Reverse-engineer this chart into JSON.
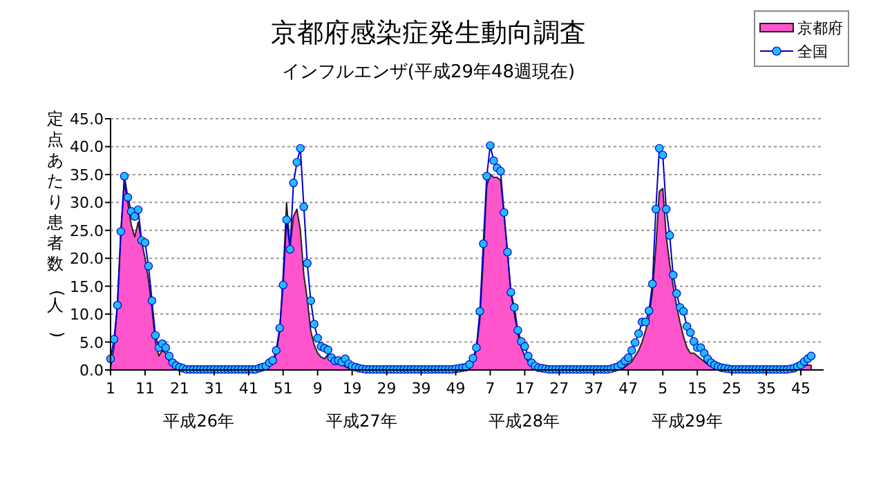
{
  "chart_data": {
    "type": "area",
    "title": "京都府感染症発生動向調査",
    "subtitle": "インフルエンザ(平成29年48週現在)",
    "ylabel": "定点あたり患者数(人)",
    "categories": [
      "1",
      null,
      null,
      null,
      null,
      null,
      null,
      null,
      null,
      null,
      "11",
      null,
      null,
      null,
      null,
      null,
      null,
      null,
      null,
      null,
      "21",
      null,
      null,
      null,
      null,
      null,
      null,
      null,
      null,
      null,
      "31",
      null,
      null,
      null,
      null,
      null,
      null,
      null,
      null,
      null,
      "41",
      null,
      null,
      null,
      null,
      null,
      null,
      null,
      null,
      null,
      "51",
      null,
      null,
      null,
      null,
      null,
      null,
      null,
      null,
      null,
      "9",
      null,
      null,
      null,
      null,
      null,
      null,
      null,
      null,
      null,
      "19",
      null,
      null,
      null,
      null,
      null,
      null,
      null,
      null,
      null,
      "29",
      null,
      null,
      null,
      null,
      null,
      null,
      null,
      null,
      null,
      "39",
      null,
      null,
      null,
      null,
      null,
      null,
      null,
      null,
      null,
      "49",
      null,
      null,
      null,
      null,
      null,
      null,
      null,
      null,
      null,
      "7",
      null,
      null,
      null,
      null,
      null,
      null,
      null,
      null,
      null,
      "17",
      null,
      null,
      null,
      null,
      null,
      null,
      null,
      null,
      null,
      "27",
      null,
      null,
      null,
      null,
      null,
      null,
      null,
      null,
      null,
      "37",
      null,
      null,
      null,
      null,
      null,
      null,
      null,
      null,
      null,
      "47",
      null,
      null,
      null,
      null,
      null,
      null,
      null,
      null,
      null,
      "5",
      null,
      null,
      null,
      null,
      null,
      null,
      null,
      null,
      null,
      "15",
      null,
      null,
      null,
      null,
      null,
      null,
      null,
      null,
      null,
      "25",
      null,
      null,
      null,
      null,
      null,
      null,
      null,
      null,
      null,
      "35",
      null,
      null,
      null,
      null,
      null,
      null,
      null,
      null,
      null,
      "45",
      null,
      null,
      null
    ],
    "series": [
      {
        "name": "京都府",
        "color": "#ff55cc",
        "values": [
          0.5,
          4.0,
          12.0,
          25.0,
          33.5,
          30.0,
          26.0,
          23.8,
          26.5,
          23.0,
          20.0,
          16.0,
          11.0,
          5.0,
          2.5,
          3.5,
          3.0,
          1.5,
          0.8,
          0.4,
          0.2,
          0,
          0,
          0,
          0,
          0,
          0,
          0,
          0,
          0,
          0,
          0,
          0,
          0,
          0,
          0,
          0,
          0,
          0,
          0,
          0,
          0,
          0,
          0,
          0,
          0.3,
          0.6,
          1.2,
          3.0,
          7.0,
          17.0,
          30.0,
          22.0,
          27.5,
          28.8,
          25.0,
          17.0,
          12.7,
          7.0,
          4.5,
          3.0,
          2.3,
          2.0,
          2.8,
          2.0,
          1.0,
          1.3,
          1.0,
          0.6,
          0.3,
          0.2,
          0,
          0,
          0,
          0,
          0,
          0,
          0,
          0,
          0,
          0,
          0,
          0,
          0,
          0,
          0,
          0,
          0,
          0,
          0,
          0,
          0,
          0,
          0,
          0,
          0,
          0,
          0,
          0,
          0,
          0,
          0,
          0,
          0.2,
          0.5,
          1.5,
          3.5,
          9.0,
          20.0,
          33.0,
          35.0,
          34.5,
          34.5,
          34.0,
          28.0,
          21.0,
          14.0,
          10.0,
          6.5,
          4.0,
          2.5,
          1.5,
          0.8,
          0.4,
          0.2,
          0,
          0,
          0,
          0,
          0,
          0,
          0,
          0,
          0,
          0,
          0,
          0,
          0,
          0,
          0,
          0,
          0,
          0,
          0,
          0,
          0,
          0,
          0,
          0,
          0.5,
          1.0,
          1.5,
          2.5,
          3.5,
          5.0,
          7.0,
          9.5,
          14.0,
          22.0,
          32.0,
          32.5,
          24.0,
          19.0,
          15.0,
          11.5,
          8.5,
          6.0,
          4.0,
          3.0,
          3.0,
          2.5,
          2.0,
          1.5,
          1.0,
          0.6,
          0.3,
          0.1,
          0,
          0,
          0,
          0,
          0,
          0,
          0,
          0,
          0,
          0,
          0,
          0,
          0,
          0,
          0,
          0,
          0,
          0,
          0,
          0,
          0,
          0,
          0.2,
          0.4,
          0.7,
          0.9,
          0.8
        ]
      },
      {
        "name": "全国",
        "type": "line",
        "color": "#0000cc",
        "marker": "circle",
        "values": [
          2.0,
          5.5,
          11.6,
          24.8,
          34.7,
          30.9,
          28.4,
          27.5,
          28.7,
          23.2,
          22.8,
          18.6,
          12.4,
          6.2,
          4.0,
          4.7,
          4.0,
          2.5,
          1.3,
          0.8,
          0.5,
          0.3,
          0.1,
          0.1,
          0.1,
          0.1,
          0.1,
          0.1,
          0.1,
          0.1,
          0.1,
          0.1,
          0.1,
          0.1,
          0.1,
          0.1,
          0.1,
          0.1,
          0.1,
          0.1,
          0.1,
          0.1,
          0.1,
          0.3,
          0.5,
          0.7,
          1.3,
          1.7,
          3.5,
          7.5,
          15.2,
          26.9,
          21.6,
          33.5,
          37.2,
          39.7,
          29.2,
          19.1,
          12.4,
          8.2,
          5.7,
          4.2,
          3.9,
          3.6,
          2.2,
          1.6,
          1.7,
          1.4,
          2.0,
          1.1,
          0.7,
          0.5,
          0.3,
          0.2,
          0.1,
          0.1,
          0.1,
          0.1,
          0.1,
          0.1,
          0.1,
          0.1,
          0.1,
          0.1,
          0.1,
          0.1,
          0.1,
          0.1,
          0.1,
          0.1,
          0.1,
          0.1,
          0.1,
          0.1,
          0.1,
          0.1,
          0.1,
          0.1,
          0.1,
          0.1,
          0.2,
          0.3,
          0.4,
          0.5,
          1.0,
          2.1,
          4.0,
          10.5,
          22.6,
          34.7,
          40.2,
          37.5,
          36.2,
          35.6,
          28.2,
          21.1,
          13.9,
          11.2,
          7.1,
          5.1,
          4.2,
          2.5,
          1.3,
          0.7,
          0.4,
          0.3,
          0.2,
          0.1,
          0.1,
          0.1,
          0.1,
          0.1,
          0.1,
          0.1,
          0.1,
          0.1,
          0.1,
          0.1,
          0.1,
          0.1,
          0.1,
          0.1,
          0.1,
          0.1,
          0.1,
          0.2,
          0.4,
          0.6,
          1.0,
          1.6,
          2.2,
          3.5,
          4.9,
          6.5,
          8.6,
          8.6,
          10.6,
          15.4,
          28.8,
          39.7,
          38.5,
          28.8,
          24.1,
          17.0,
          13.7,
          11.2,
          10.5,
          7.8,
          6.7,
          5.1,
          4.0,
          4.0,
          3.0,
          2.0,
          1.3,
          0.9,
          0.6,
          0.4,
          0.3,
          0.2,
          0.1,
          0.1,
          0.1,
          0.1,
          0.1,
          0.1,
          0.1,
          0.1,
          0.1,
          0.1,
          0.1,
          0.1,
          0.1,
          0.1,
          0.1,
          0.1,
          0.1,
          0.2,
          0.3,
          0.6,
          0.9,
          1.5,
          2.0,
          2.5
        ]
      }
    ],
    "ylim": [
      0,
      45
    ],
    "yticks": [
      {
        "value": 0,
        "label": "0.0"
      },
      {
        "value": 5,
        "label": "5.0"
      },
      {
        "value": 10,
        "label": "10.0"
      },
      {
        "value": 15,
        "label": "15.0"
      },
      {
        "value": 20,
        "label": "20.0"
      },
      {
        "value": 25,
        "label": "25.0"
      },
      {
        "value": 30,
        "label": "30.0"
      },
      {
        "value": 35,
        "label": "35.0"
      },
      {
        "value": 40,
        "label": "40.0"
      },
      {
        "value": 45,
        "label": "45.0"
      }
    ],
    "grid": "y",
    "legend": "top right",
    "annotations": [
      "平成26年",
      "平成27年",
      "平成28年",
      "平成29年"
    ]
  }
}
